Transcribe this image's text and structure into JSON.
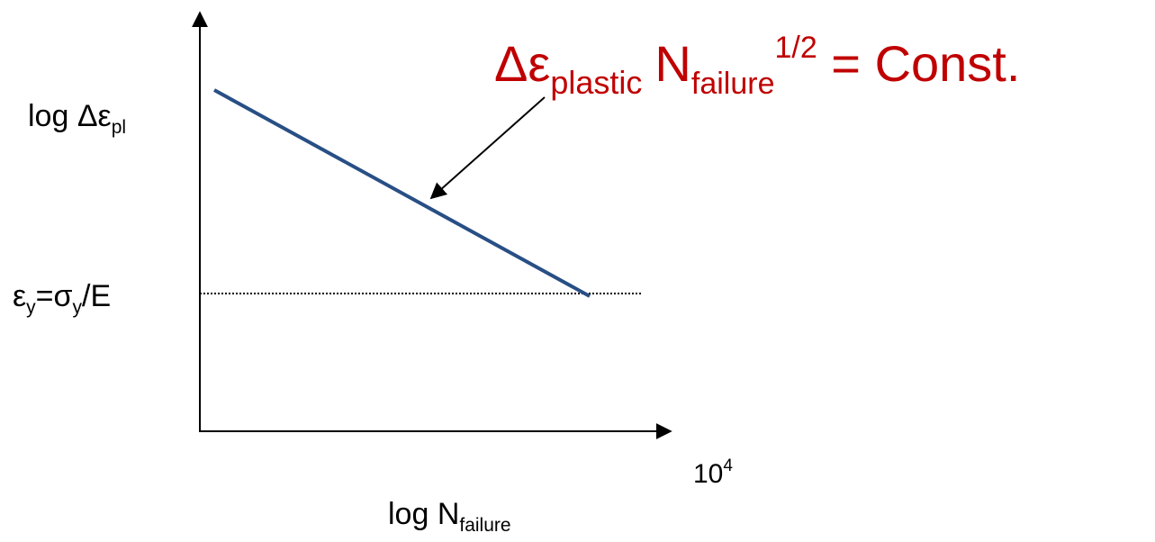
{
  "equation": {
    "delta": "Δ",
    "epsilon": "ε",
    "eps_sub": "plastic",
    "n": "N",
    "n_sub": "failure",
    "n_sup": "1/2",
    "tail": " = Const.",
    "color": "#c00000"
  },
  "y_axis_label": {
    "prefix": "log Δε",
    "sub": "pl"
  },
  "threshold_label": {
    "eps": "ε",
    "eps_sub": "y",
    "mid": "=σ",
    "sig_sub": "y",
    "tail": "/E"
  },
  "x_tick": {
    "base": "10",
    "exp": "4"
  },
  "x_axis_label": {
    "prefix": "log N",
    "sub": "failure"
  },
  "colors": {
    "line": "#284f85",
    "axes": "#000000",
    "equation": "#c00000"
  }
}
